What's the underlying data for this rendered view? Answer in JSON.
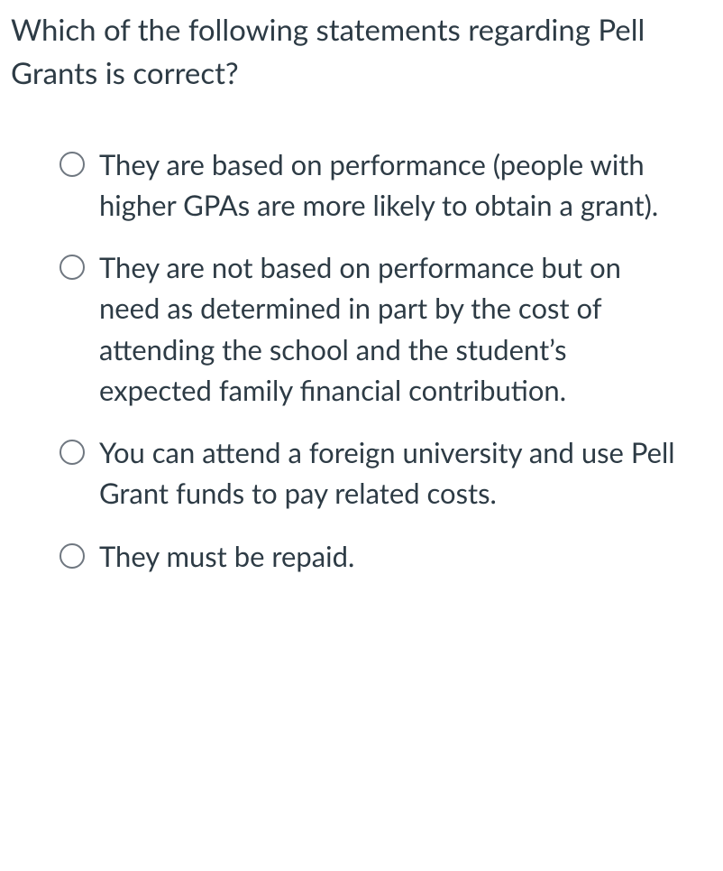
{
  "question": {
    "text": "Which of the following statements regarding Pell Grants is correct?",
    "text_color": "#2d3b45",
    "font_size": 33
  },
  "options": [
    {
      "label": "They are based on performance (people with higher GPAs are more likely to obtain a grant).",
      "selected": false
    },
    {
      "label": "They are not based on performance but on need as determined in part by the cost of attending the school and the student’s expected family financial contribution.",
      "selected": false
    },
    {
      "label": "You can attend a foreign university and use Pell Grant funds to pay related costs.",
      "selected": false
    },
    {
      "label": "They must be repaid.",
      "selected": false
    }
  ],
  "styling": {
    "background_color": "#ffffff",
    "option_text_color": "#2d3b45",
    "radio_border_color": "#6f7780",
    "option_font_size": 31
  }
}
